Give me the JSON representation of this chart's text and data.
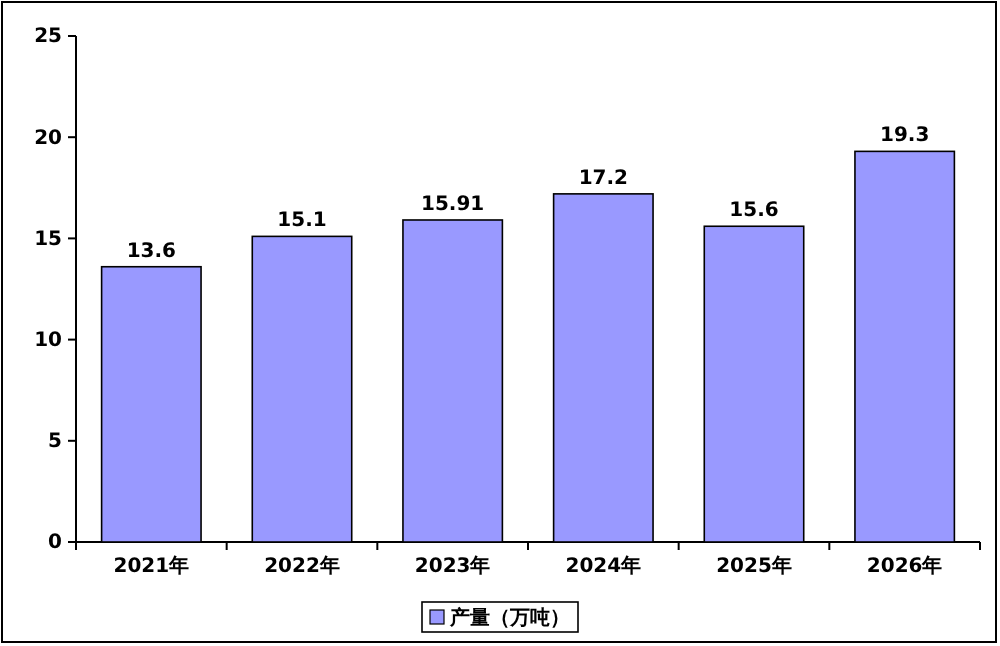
{
  "chart_data": {
    "type": "bar",
    "categories": [
      "2021年",
      "2022年",
      "2023年",
      "2024年",
      "2025年",
      "2026年"
    ],
    "series": [
      {
        "name": "产量（万吨）",
        "color": "#9999ff",
        "values": [
          13.6,
          15.1,
          15.91,
          17.2,
          15.6,
          19.3
        ]
      }
    ],
    "ylim": [
      0,
      25
    ],
    "yticks": [
      0,
      5,
      10,
      15,
      20,
      25
    ],
    "grid": false,
    "legend": "bottom",
    "data_labels": true
  }
}
